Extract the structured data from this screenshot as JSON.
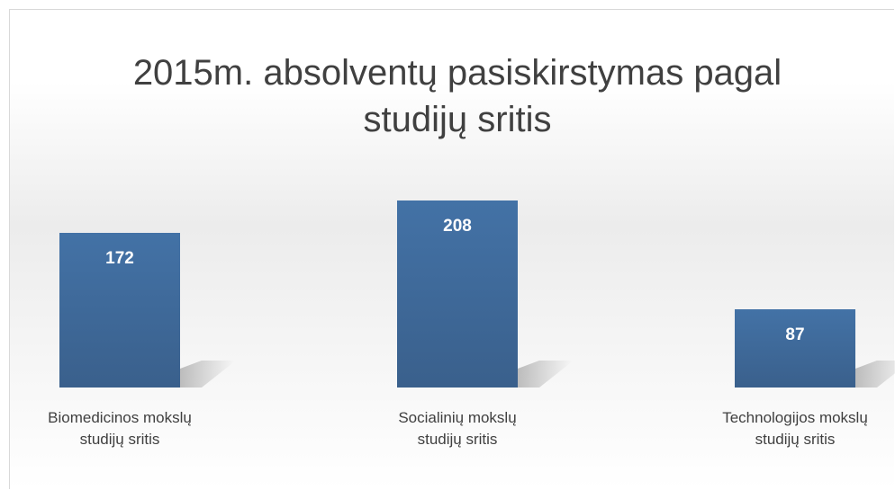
{
  "chart_data": {
    "type": "bar",
    "title": "2015m. absolventų pasiskirstymas pagal studijų sritis",
    "categories": [
      "Biomedicinos mokslų studijų sritis",
      "Socialinių mokslų studijų sritis",
      "Technologijos mokslų studijų sritis"
    ],
    "values": [
      172,
      208,
      87
    ],
    "color": "#4372a6"
  }
}
